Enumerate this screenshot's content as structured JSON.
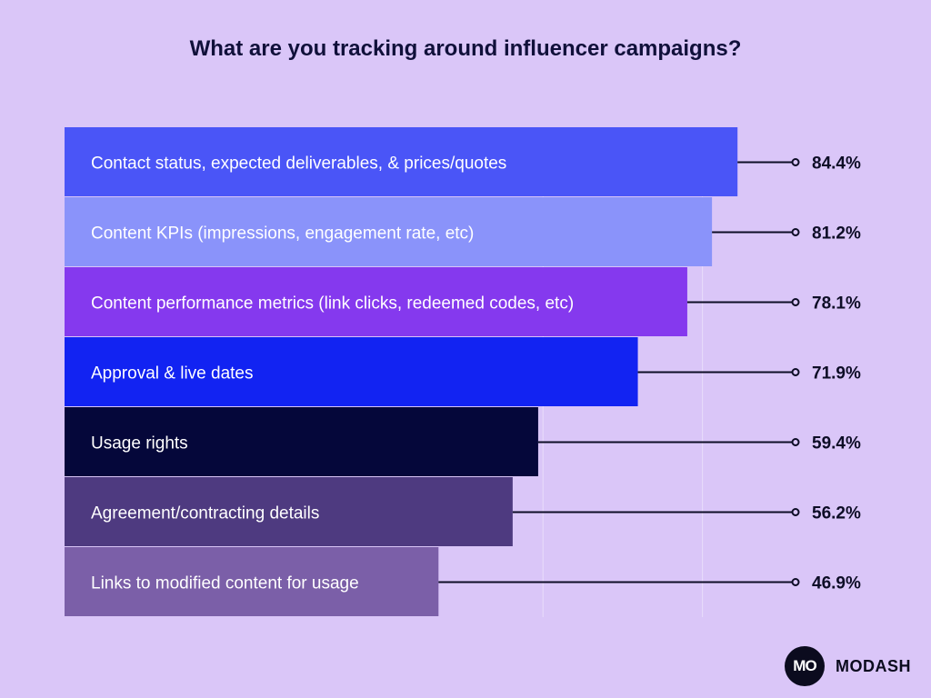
{
  "chart_data": {
    "type": "bar",
    "orientation": "horizontal",
    "title": "What are you tracking around influencer campaigns?",
    "categories": [
      "Contact status, expected deliverables, & prices/quotes",
      "Content KPIs (impressions, engagement rate, etc)",
      "Content performance metrics (link clicks, redeemed codes, etc)",
      "Approval & live dates",
      "Usage rights",
      "Agreement/contracting details",
      "Links to modified content for usage"
    ],
    "values": [
      84.4,
      81.2,
      78.1,
      71.9,
      59.4,
      56.2,
      46.9
    ],
    "value_labels": [
      "84.4%",
      "81.2%",
      "78.1%",
      "71.9%",
      "59.4%",
      "56.2%",
      "46.9%"
    ],
    "colors": [
      "#4a55f7",
      "#8a93fa",
      "#8539ee",
      "#1223f2",
      "#05073a",
      "#4e3a80",
      "#7b5fa8"
    ],
    "xlim": [
      0,
      100
    ],
    "grid": true,
    "legend": "none"
  },
  "brand": {
    "logo_text": "MO",
    "name": "MODASH"
  }
}
